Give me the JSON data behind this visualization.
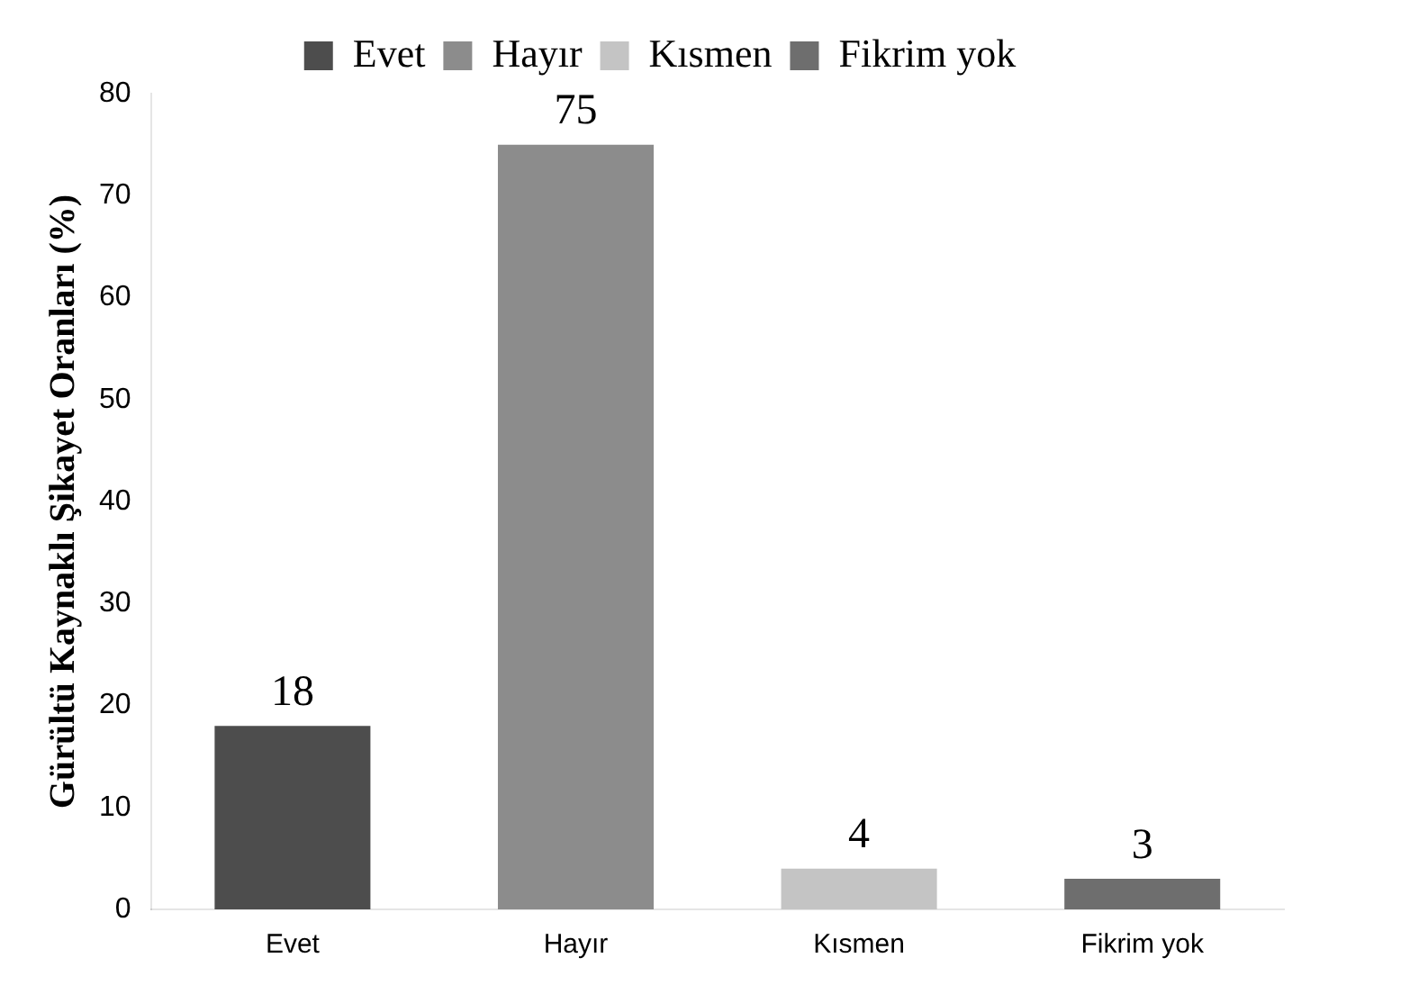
{
  "chart_data": {
    "type": "bar",
    "ylabel": "Gürültü Kaynaklı Şikayet Oranları (%)",
    "categories": [
      "Evet",
      "Hayır",
      "Kısmen",
      "Fikrim yok"
    ],
    "series": [
      {
        "name": "Evet",
        "color": "#4d4d4d",
        "values": [
          18,
          null,
          null,
          null
        ]
      },
      {
        "name": "Hayır",
        "color": "#8c8c8c",
        "values": [
          null,
          75,
          null,
          null
        ]
      },
      {
        "name": "Kısmen",
        "color": "#c4c4c4",
        "values": [
          null,
          null,
          4,
          null
        ]
      },
      {
        "name": "Fikrim yok",
        "color": "#6e6e6e",
        "values": [
          null,
          null,
          null,
          3
        ]
      }
    ],
    "ylim": [
      0,
      80
    ],
    "yticks": [
      0,
      10,
      20,
      30,
      40,
      50,
      60,
      70,
      80
    ],
    "grid": false,
    "legend": "top",
    "data_labels": true
  }
}
